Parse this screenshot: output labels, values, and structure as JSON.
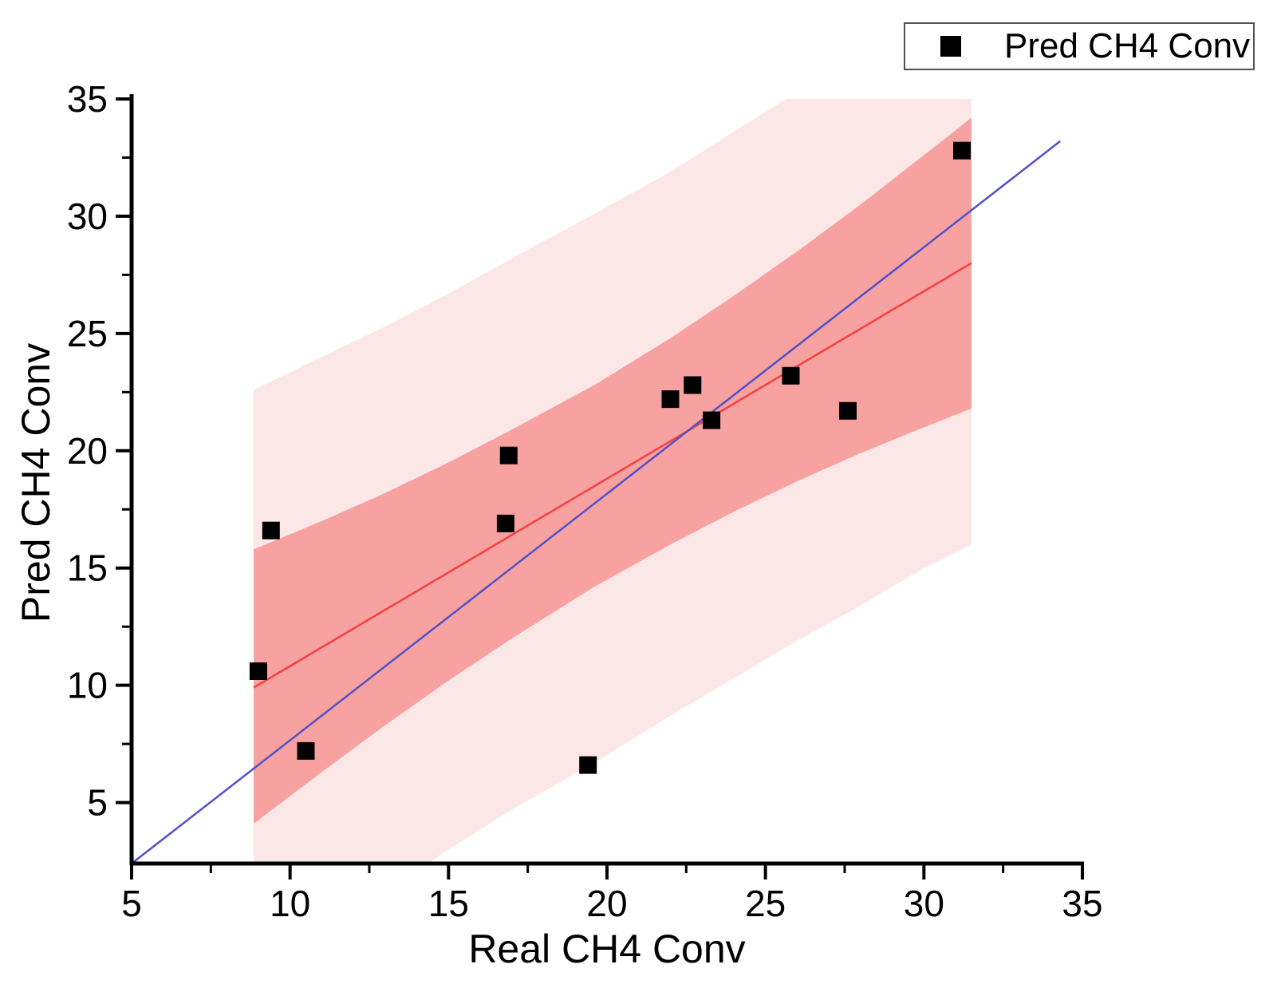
{
  "chart_data": {
    "type": "scatter",
    "title": "",
    "xlabel": "Real CH4 Conv",
    "ylabel": "Pred CH4 Conv",
    "xlim": [
      5,
      35
    ],
    "ylim": [
      2.4,
      35
    ],
    "x_ticks": [
      5,
      10,
      15,
      20,
      25,
      30,
      35
    ],
    "y_ticks": [
      5,
      10,
      15,
      20,
      25,
      30,
      35
    ],
    "x_minor_ticks": [
      7.5,
      12.5,
      17.5,
      22.5,
      27.5,
      32.5
    ],
    "y_minor_ticks": [
      7.5,
      12.5,
      17.5,
      22.5,
      27.5,
      32.5
    ],
    "grid": false,
    "legend": {
      "position": "top-right",
      "entries": [
        {
          "label": "Pred CH4 Conv",
          "marker": "square",
          "color": "#000000"
        }
      ]
    },
    "series": [
      {
        "name": "Pred CH4 Conv",
        "marker": "square",
        "color": "#000000",
        "points": [
          [
            9.0,
            10.6
          ],
          [
            9.4,
            16.6
          ],
          [
            10.5,
            7.2
          ],
          [
            16.8,
            16.9
          ],
          [
            16.9,
            19.8
          ],
          [
            19.4,
            6.6
          ],
          [
            22.0,
            22.2
          ],
          [
            22.7,
            22.8
          ],
          [
            23.3,
            21.3
          ],
          [
            25.8,
            23.2
          ],
          [
            27.6,
            21.7
          ],
          [
            31.2,
            32.8
          ]
        ]
      }
    ],
    "fit_line": {
      "name": "linear-fit",
      "color": "#f64040",
      "x": [
        8.85,
        31.5
      ],
      "y": [
        9.9,
        28.0
      ]
    },
    "identity_line": {
      "name": "y-equals-x-reference",
      "color": "#5050c8",
      "x": [
        5.0,
        34.3
      ],
      "y": [
        2.4,
        33.2
      ]
    },
    "confidence_band": {
      "color": "#f7a1a1",
      "x": [
        8.85,
        11.0,
        13.0,
        15.0,
        17.0,
        19.6,
        22.0,
        24.0,
        26.0,
        28.0,
        30.0,
        31.5
      ],
      "upper": [
        15.8,
        17.0,
        18.2,
        19.5,
        20.9,
        22.8,
        24.8,
        26.6,
        28.5,
        30.5,
        32.6,
        34.2
      ],
      "lower": [
        4.1,
        6.3,
        8.3,
        10.2,
        12.0,
        14.2,
        16.0,
        17.4,
        18.7,
        19.9,
        21.0,
        21.8
      ]
    },
    "prediction_band": {
      "color": "#fce7e7",
      "x": [
        8.85,
        11.0,
        13.0,
        15.0,
        17.0,
        19.6,
        22.0,
        24.0,
        26.0,
        28.0,
        30.0,
        31.5
      ],
      "upper": [
        22.6,
        24.0,
        25.3,
        26.7,
        28.2,
        30.1,
        31.9,
        33.6,
        35.3,
        37.0,
        38.8,
        40.0
      ],
      "lower": [
        -2.6,
        -0.6,
        1.2,
        3.0,
        4.7,
        6.7,
        8.7,
        10.3,
        11.9,
        13.4,
        15.0,
        16.0
      ]
    },
    "axis_color": "#000000",
    "tick_label_color": "#000000"
  }
}
